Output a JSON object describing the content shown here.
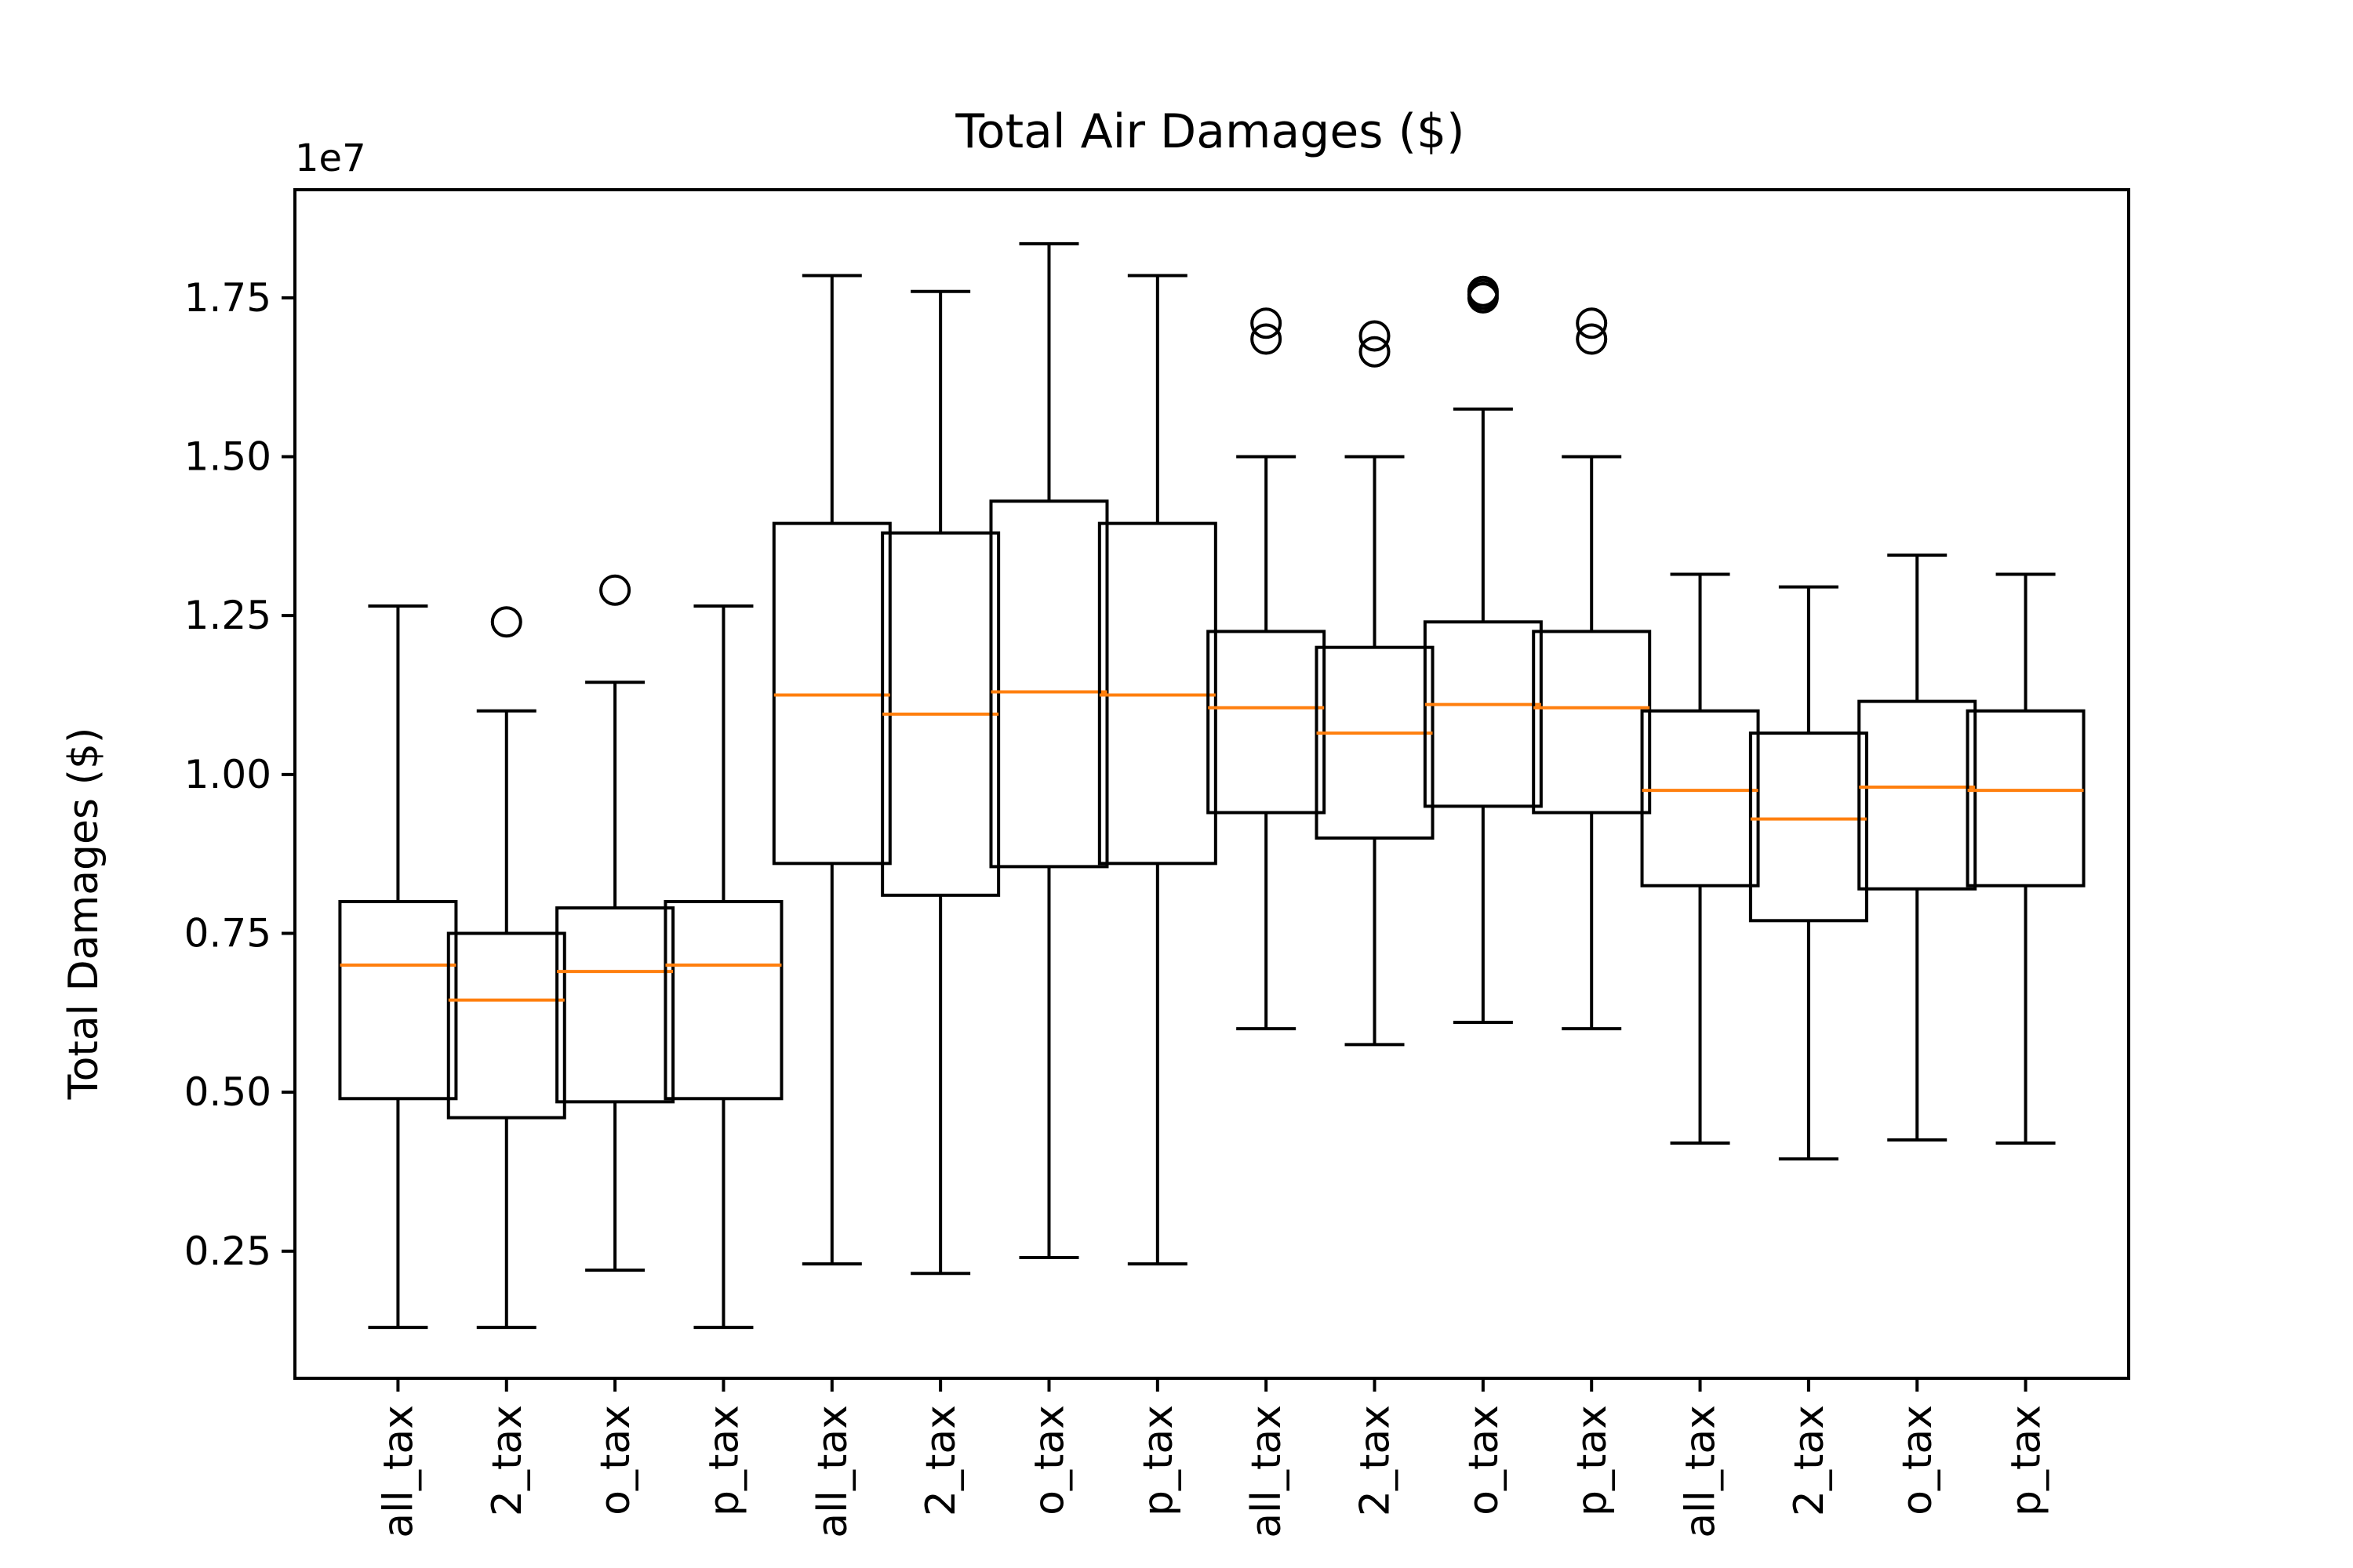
{
  "chart_data": {
    "type": "box",
    "title": "Total Air Damages ($)",
    "ylabel": "Total Damages ($)",
    "xlabel": "",
    "y_multiplier_label": "1e7",
    "ylim": [
      0.05,
      1.92
    ],
    "y_ticks": [
      0.25,
      0.5,
      0.75,
      1.0,
      1.25,
      1.5,
      1.75
    ],
    "y_tick_labels": [
      "0.25",
      "0.50",
      "0.75",
      "1.00",
      "1.25",
      "1.50",
      "1.75"
    ],
    "grid": false,
    "colors": {
      "median": "#ff7f0e",
      "box": "#000000"
    },
    "categories": [
      "all_tax",
      "2_tax",
      "o_tax",
      "p_tax",
      "all_tax",
      "2_tax",
      "o_tax",
      "p_tax",
      "all_tax",
      "2_tax",
      "o_tax",
      "p_tax",
      "all_tax",
      "2_tax",
      "o_tax",
      "p_tax"
    ],
    "category_labels": [
      "all_tax",
      "2_tax",
      "o_tax",
      "p_tax",
      "all_tax",
      "2_tax",
      "o_tax",
      "p_tax",
      "all_tax",
      "2_tax",
      "o_tax",
      "p_tax",
      "all_tax",
      "2_tax",
      "o_tax",
      "p_tax"
    ],
    "boxes": [
      {
        "whisker_low": 0.13,
        "q1": 0.49,
        "median": 0.7,
        "q3": 0.8,
        "whisker_high": 1.265,
        "outliers": []
      },
      {
        "whisker_low": 0.13,
        "q1": 0.46,
        "median": 0.645,
        "q3": 0.75,
        "whisker_high": 1.1,
        "outliers": [
          1.24
        ]
      },
      {
        "whisker_low": 0.22,
        "q1": 0.485,
        "median": 0.69,
        "q3": 0.79,
        "whisker_high": 1.145,
        "outliers": [
          1.29
        ]
      },
      {
        "whisker_low": 0.13,
        "q1": 0.49,
        "median": 0.7,
        "q3": 0.8,
        "whisker_high": 1.265,
        "outliers": []
      },
      {
        "whisker_low": 0.23,
        "q1": 0.86,
        "median": 1.125,
        "q3": 1.395,
        "whisker_high": 1.785,
        "outliers": []
      },
      {
        "whisker_low": 0.215,
        "q1": 0.81,
        "median": 1.095,
        "q3": 1.38,
        "whisker_high": 1.76,
        "outliers": []
      },
      {
        "whisker_low": 0.24,
        "q1": 0.855,
        "median": 1.13,
        "q3": 1.43,
        "whisker_high": 1.835,
        "outliers": []
      },
      {
        "whisker_low": 0.23,
        "q1": 0.86,
        "median": 1.125,
        "q3": 1.395,
        "whisker_high": 1.785,
        "outliers": []
      },
      {
        "whisker_low": 0.6,
        "q1": 0.94,
        "median": 1.105,
        "q3": 1.225,
        "whisker_high": 1.5,
        "outliers": [
          1.685,
          1.71
        ]
      },
      {
        "whisker_low": 0.575,
        "q1": 0.9,
        "median": 1.065,
        "q3": 1.2,
        "whisker_high": 1.5,
        "outliers": [
          1.665,
          1.69
        ]
      },
      {
        "whisker_low": 0.61,
        "q1": 0.95,
        "median": 1.11,
        "q3": 1.24,
        "whisker_high": 1.575,
        "outliers": [
          1.75,
          1.755,
          1.76
        ]
      },
      {
        "whisker_low": 0.6,
        "q1": 0.94,
        "median": 1.105,
        "q3": 1.225,
        "whisker_high": 1.5,
        "outliers": [
          1.685,
          1.71
        ]
      },
      {
        "whisker_low": 0.42,
        "q1": 0.825,
        "median": 0.975,
        "q3": 1.1,
        "whisker_high": 1.315,
        "outliers": []
      },
      {
        "whisker_low": 0.395,
        "q1": 0.77,
        "median": 0.93,
        "q3": 1.065,
        "whisker_high": 1.295,
        "outliers": []
      },
      {
        "whisker_low": 0.425,
        "q1": 0.82,
        "median": 0.98,
        "q3": 1.115,
        "whisker_high": 1.345,
        "outliers": []
      },
      {
        "whisker_low": 0.42,
        "q1": 0.825,
        "median": 0.975,
        "q3": 1.1,
        "whisker_high": 1.315,
        "outliers": []
      }
    ]
  }
}
